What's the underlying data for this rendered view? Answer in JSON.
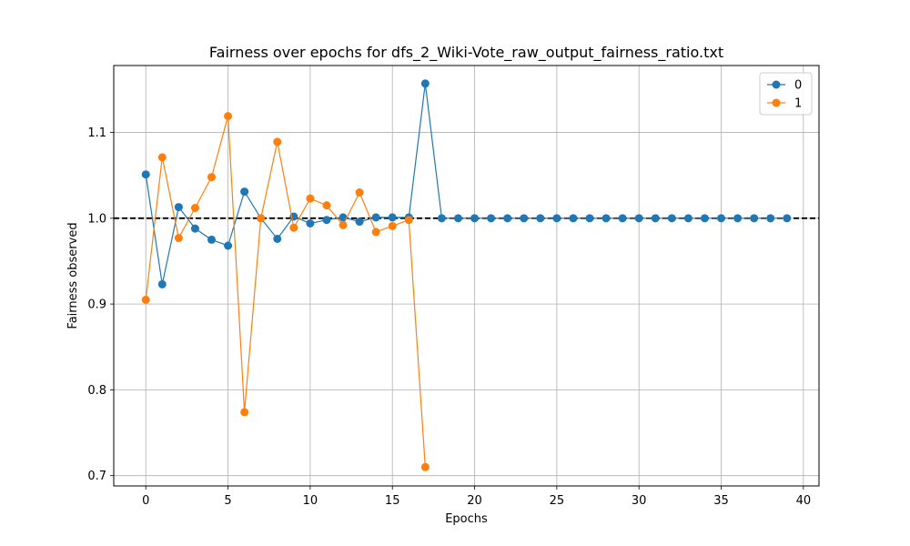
{
  "chart_data": {
    "type": "line",
    "title": "Fairness over epochs for dfs_2_Wiki-Vote_raw_output_fairness_ratio.txt",
    "xlabel": "Epochs",
    "ylabel": "Fairness observed",
    "xlim": [
      -1.95,
      40.95
    ],
    "ylim": [
      0.688,
      1.178
    ],
    "x_ticks": [
      0,
      5,
      10,
      15,
      20,
      25,
      30,
      35,
      40
    ],
    "y_ticks": [
      0.7,
      0.8,
      0.9,
      1.0,
      1.1
    ],
    "x_tick_labels": [
      "0",
      "5",
      "10",
      "15",
      "20",
      "25",
      "30",
      "35",
      "40"
    ],
    "y_tick_labels": [
      "0.7",
      "0.8",
      "0.9",
      "1.0",
      "1.1"
    ],
    "grid": true,
    "legend_position": "top-right",
    "reference_line": {
      "y": 1.0,
      "style": "dashed",
      "color": "#000000"
    },
    "series": [
      {
        "name": "0",
        "color": "#1f77b4",
        "x": [
          0,
          1,
          2,
          3,
          4,
          5,
          6,
          7,
          8,
          9,
          10,
          11,
          12,
          13,
          14,
          15,
          16,
          17,
          18,
          19,
          20,
          21,
          22,
          23,
          24,
          25,
          26,
          27,
          28,
          29,
          30,
          31,
          32,
          33,
          34,
          35,
          36,
          37,
          38,
          39
        ],
        "values": [
          1.051,
          0.923,
          1.013,
          0.988,
          0.975,
          0.968,
          1.031,
          1.0,
          0.976,
          1.002,
          0.994,
          0.998,
          1.001,
          0.996,
          1.001,
          1.001,
          1.001,
          1.157,
          1.0,
          1.0,
          1.0,
          1.0,
          1.0,
          1.0,
          1.0,
          1.0,
          1.0,
          1.0,
          1.0,
          1.0,
          1.0,
          1.0,
          1.0,
          1.0,
          1.0,
          1.0,
          1.0,
          1.0,
          1.0,
          1.0
        ]
      },
      {
        "name": "1",
        "color": "#ff7f0e",
        "x": [
          0,
          1,
          2,
          3,
          4,
          5,
          6,
          7,
          8,
          9,
          10,
          11,
          12,
          13,
          14,
          15,
          16,
          17
        ],
        "values": [
          0.905,
          1.071,
          0.977,
          1.012,
          1.048,
          1.119,
          0.774,
          1.0,
          1.089,
          0.989,
          1.023,
          1.015,
          0.992,
          1.03,
          0.984,
          0.991,
          0.998,
          0.71
        ]
      }
    ]
  }
}
